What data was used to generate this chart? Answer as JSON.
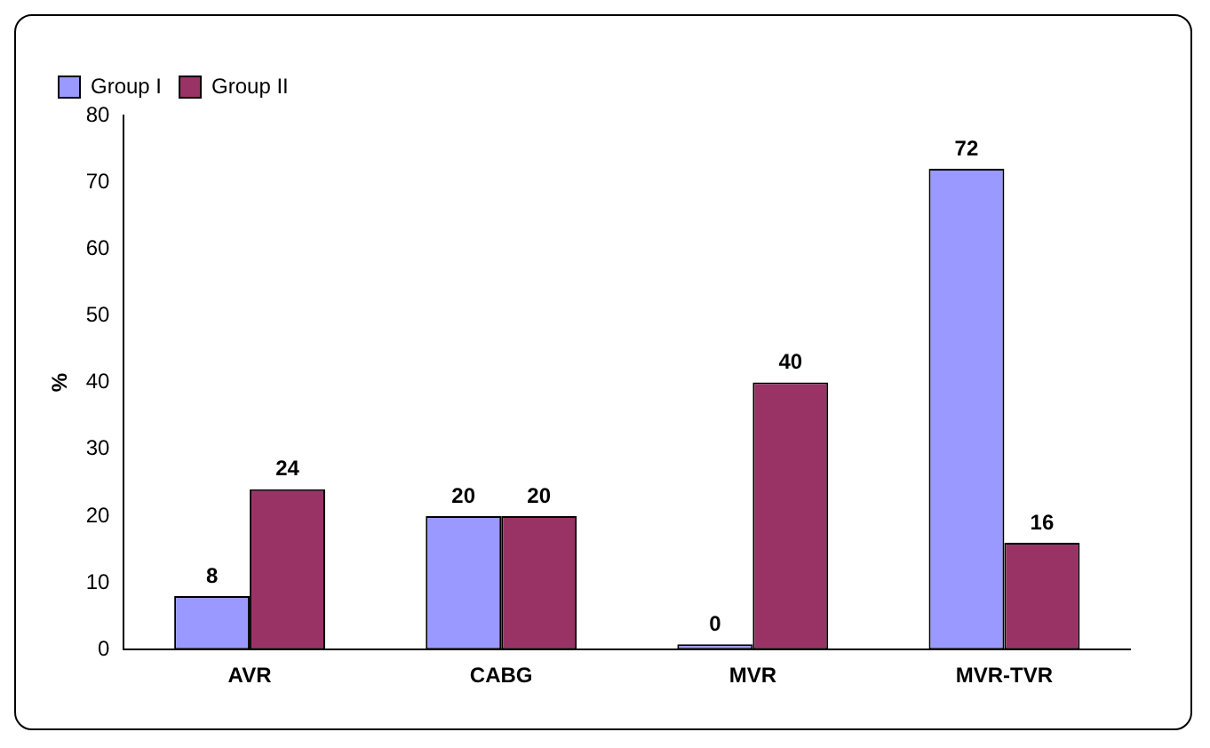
{
  "chart_data": {
    "type": "bar",
    "ylabel": "%",
    "categories": [
      "AVR",
      "CABG",
      "MVR",
      "MVR-TVR"
    ],
    "series": [
      {
        "name": "Group I",
        "color": "#9999ff",
        "values": [
          8,
          20,
          0,
          72
        ]
      },
      {
        "name": "Group II",
        "color": "#993366",
        "values": [
          24,
          20,
          40,
          16
        ]
      }
    ],
    "ylim": [
      0,
      80
    ],
    "yticks": [
      0,
      10,
      20,
      30,
      40,
      50,
      60,
      70,
      80
    ],
    "grid": false,
    "legend": "top left",
    "data_labels": true
  }
}
